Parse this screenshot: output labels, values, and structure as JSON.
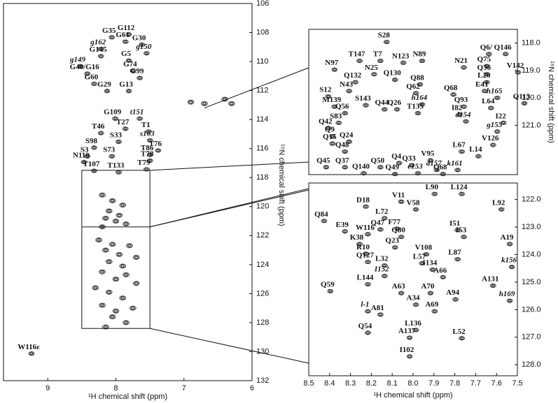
{
  "chart_data": [
    {
      "type": "contour",
      "xlim": [
        9.65,
        6
      ],
      "ylim": [
        106,
        132
      ],
      "xticks": [
        9,
        8,
        7,
        6
      ],
      "yticks": [
        106,
        108,
        110,
        112,
        114,
        116,
        118,
        120,
        122,
        124,
        126,
        128,
        130,
        132
      ],
      "x_label": "¹H chemical shift (ppm)",
      "y_label": "¹⁵N chemical shift (ppm)",
      "palette": {
        "red": "#e2282e",
        "blue": "#1f4b99",
        "green": "#6fae2a"
      },
      "labels": [
        {
          "label": "G112",
          "x": 7.85,
          "y": 107.7,
          "color": "red"
        },
        {
          "label": "G35",
          "x": 8.1,
          "y": 107.9,
          "color": "blue"
        },
        {
          "label": "G61",
          "x": 7.9,
          "y": 108.2,
          "color": "blue"
        },
        {
          "label": "G30",
          "x": 7.66,
          "y": 108.4,
          "color": "blue"
        },
        {
          "label": "g162",
          "x": 8.26,
          "y": 108.7,
          "color": "green"
        },
        {
          "label": "g150",
          "x": 7.59,
          "y": 109.0,
          "color": "green"
        },
        {
          "label": "G145",
          "x": 8.26,
          "y": 109.2,
          "color": "red"
        },
        {
          "label": "G5",
          "x": 7.85,
          "y": 109.5,
          "color": "blue"
        },
        {
          "label": "g149",
          "x": 8.56,
          "y": 109.9,
          "color": "green"
        },
        {
          "label": "G74",
          "x": 7.79,
          "y": 110.2,
          "color": "blue"
        },
        {
          "label": "G40/G16",
          "x": 8.46,
          "y": 110.4,
          "color": "blue"
        },
        {
          "label": "G99",
          "x": 7.69,
          "y": 110.7,
          "color": "red"
        },
        {
          "label": "G60",
          "x": 8.36,
          "y": 111.1,
          "color": "blue"
        },
        {
          "label": "G29",
          "x": 8.17,
          "y": 111.6,
          "color": "blue"
        },
        {
          "label": "G13",
          "x": 7.85,
          "y": 111.6,
          "color": "blue"
        },
        {
          "label": "G109",
          "x": 8.05,
          "y": 113.5,
          "color": "red"
        },
        {
          "label": "t151",
          "x": 7.69,
          "y": 113.5,
          "color": "green"
        },
        {
          "label": "T27",
          "x": 7.9,
          "y": 114.2,
          "color": "blue"
        },
        {
          "label": "T46",
          "x": 8.26,
          "y": 114.5,
          "color": "blue"
        },
        {
          "label": "T1",
          "x": 7.56,
          "y": 114.4,
          "color": "blue"
        },
        {
          "label": "s163",
          "x": 7.54,
          "y": 115.0,
          "color": "green"
        },
        {
          "label": "S33",
          "x": 8.0,
          "y": 115.1,
          "color": "blue"
        },
        {
          "label": "T76",
          "x": 7.42,
          "y": 115.7,
          "color": "blue"
        },
        {
          "label": "S98",
          "x": 8.36,
          "y": 115.5,
          "color": "red"
        },
        {
          "label": "T86",
          "x": 7.54,
          "y": 116.0,
          "color": "red"
        },
        {
          "label": "S3",
          "x": 8.46,
          "y": 116.1,
          "color": "blue"
        },
        {
          "label": "S73",
          "x": 8.1,
          "y": 116.1,
          "color": "blue"
        },
        {
          "label": "N110",
          "x": 8.51,
          "y": 116.5,
          "color": "red"
        },
        {
          "label": "T78",
          "x": 7.54,
          "y": 116.4,
          "color": "blue"
        },
        {
          "label": "T79",
          "x": 7.59,
          "y": 117.0,
          "color": "blue"
        },
        {
          "label": "T107",
          "x": 8.36,
          "y": 117.1,
          "color": "red"
        },
        {
          "label": "T133",
          "x": 8.0,
          "y": 117.2,
          "color": "red"
        },
        {
          "label": "W116ε",
          "x": 9.28,
          "y": 129.7,
          "color": "red"
        }
      ],
      "peaks": {
        "x": [
          8.2,
          8.05,
          7.9,
          8.1,
          7.95,
          8.15,
          8.0,
          7.85,
          8.2,
          8.25,
          8.05,
          7.8,
          8.15,
          7.95,
          7.7,
          8.1,
          7.9,
          8.2,
          7.85,
          8.0,
          7.7,
          8.3,
          8.1,
          7.9,
          8.2,
          8.0,
          7.75,
          8.05,
          7.85,
          8.15,
          6.9,
          6.4,
          6.3,
          6.7
        ],
        "y": [
          119.2,
          119.6,
          119.9,
          120.3,
          120.6,
          120.8,
          121.0,
          121.2,
          121.4,
          122.3,
          122.6,
          122.7,
          123.0,
          123.3,
          123.5,
          123.8,
          124.1,
          124.5,
          124.7,
          125.0,
          125.3,
          125.6,
          125.9,
          126.3,
          126.8,
          127.2,
          127.0,
          127.6,
          128.0,
          128.3,
          112.8,
          112.6,
          112.9,
          112.9
        ]
      }
    },
    {
      "type": "contour",
      "xlim": [
        8.5,
        7.5
      ],
      "ylim": [
        117.5,
        122.8
      ],
      "yticks": [
        {
          "value": 118,
          "label": "118.0"
        },
        {
          "value": 119,
          "label": "119.0"
        },
        {
          "value": 120,
          "label": "120.0"
        },
        {
          "value": 121,
          "label": "121.0"
        }
      ],
      "y_label": "¹⁵N chemical shift (ppm)",
      "palette": {
        "red": "#e2282e",
        "blue": "#1f4b99",
        "green": "#6fae2a"
      },
      "labels": [
        {
          "label": "S28",
          "x": 8.14,
          "y": 117.73,
          "color": "blue"
        },
        {
          "label": "T147",
          "x": 8.27,
          "y": 118.42,
          "color": "red"
        },
        {
          "label": "T7",
          "x": 8.17,
          "y": 118.42,
          "color": "blue"
        },
        {
          "label": "N123",
          "x": 8.06,
          "y": 118.49,
          "color": "red"
        },
        {
          "label": "N89",
          "x": 7.97,
          "y": 118.42,
          "color": "red"
        },
        {
          "label": "Q6/",
          "x": 7.65,
          "y": 118.17,
          "color": "blue"
        },
        {
          "label": "Q146",
          "x": 7.57,
          "y": 118.17,
          "color": "red"
        },
        {
          "label": "N97",
          "x": 8.39,
          "y": 118.74,
          "color": "red"
        },
        {
          "label": "Q75",
          "x": 7.66,
          "y": 118.61,
          "color": "blue"
        },
        {
          "label": "V142",
          "x": 7.51,
          "y": 118.84,
          "color": "red"
        },
        {
          "label": "N21",
          "x": 7.77,
          "y": 118.66,
          "color": "blue"
        },
        {
          "label": "N25",
          "x": 8.2,
          "y": 118.91,
          "color": "blue"
        },
        {
          "label": "Q36",
          "x": 7.66,
          "y": 118.91,
          "color": "blue"
        },
        {
          "label": "Q132",
          "x": 8.29,
          "y": 119.2,
          "color": "red"
        },
        {
          "label": "Q130",
          "x": 8.1,
          "y": 119.11,
          "color": "red"
        },
        {
          "label": "Q88",
          "x": 7.98,
          "y": 119.28,
          "color": "red"
        },
        {
          "label": "L20",
          "x": 7.66,
          "y": 119.2,
          "color": "blue"
        },
        {
          "label": "N43",
          "x": 8.32,
          "y": 119.52,
          "color": "blue"
        },
        {
          "label": "S12",
          "x": 8.42,
          "y": 119.72,
          "color": "blue"
        },
        {
          "label": "Q62",
          "x": 8.0,
          "y": 119.6,
          "color": "blue"
        },
        {
          "label": "Q68",
          "x": 7.82,
          "y": 119.65,
          "color": "blue"
        },
        {
          "label": "E41",
          "x": 7.67,
          "y": 119.52,
          "color": "blue"
        },
        {
          "label": "h165",
          "x": 7.61,
          "y": 119.77,
          "color": "green"
        },
        {
          "label": "Q113",
          "x": 7.48,
          "y": 119.97,
          "color": "red"
        },
        {
          "label": "M139",
          "x": 8.39,
          "y": 120.09,
          "color": "red"
        },
        {
          "label": "S143",
          "x": 8.24,
          "y": 120.04,
          "color": "red"
        },
        {
          "label": "Q26",
          "x": 8.09,
          "y": 120.19,
          "color": "blue"
        },
        {
          "label": "h164",
          "x": 7.97,
          "y": 120.01,
          "color": "green"
        },
        {
          "label": "Q93",
          "x": 7.77,
          "y": 120.09,
          "color": "red"
        },
        {
          "label": "L64",
          "x": 7.64,
          "y": 120.14,
          "color": "blue"
        },
        {
          "label": "Q56",
          "x": 8.34,
          "y": 120.33,
          "color": "blue"
        },
        {
          "label": "Q44",
          "x": 8.15,
          "y": 120.19,
          "color": "blue"
        },
        {
          "label": "T135",
          "x": 7.99,
          "y": 120.33,
          "color": "red"
        },
        {
          "label": "I82",
          "x": 7.79,
          "y": 120.38,
          "color": "red"
        },
        {
          "label": "S83",
          "x": 8.37,
          "y": 120.68,
          "color": "blue"
        },
        {
          "label": "d154",
          "x": 7.76,
          "y": 120.63,
          "color": "green"
        },
        {
          "label": "I22",
          "x": 7.58,
          "y": 120.68,
          "color": "blue"
        },
        {
          "label": "Q42",
          "x": 8.42,
          "y": 120.87,
          "color": "blue"
        },
        {
          "label": "g155",
          "x": 7.61,
          "y": 121.0,
          "color": "green"
        },
        {
          "label": "Q9",
          "x": 8.4,
          "y": 121.17,
          "color": "blue"
        },
        {
          "label": "Q24",
          "x": 8.32,
          "y": 121.37,
          "color": "blue"
        },
        {
          "label": "Q15",
          "x": 8.4,
          "y": 121.44,
          "color": "blue"
        },
        {
          "label": "Q48",
          "x": 8.34,
          "y": 121.73,
          "color": "blue"
        },
        {
          "label": "L67",
          "x": 7.78,
          "y": 121.73,
          "color": "blue"
        },
        {
          "label": "L14",
          "x": 7.7,
          "y": 121.9,
          "color": "blue"
        },
        {
          "label": "V126",
          "x": 7.63,
          "y": 121.49,
          "color": "red"
        },
        {
          "label": "Q45",
          "x": 8.43,
          "y": 122.3,
          "color": "blue"
        },
        {
          "label": "Q37",
          "x": 8.34,
          "y": 122.3,
          "color": "blue"
        },
        {
          "label": "Q50",
          "x": 8.17,
          "y": 122.3,
          "color": "blue"
        },
        {
          "label": "Q4",
          "x": 8.08,
          "y": 122.15,
          "color": "blue"
        },
        {
          "label": "Q33",
          "x": 8.02,
          "y": 122.23,
          "color": "blue"
        },
        {
          "label": "V95",
          "x": 7.93,
          "y": 122.05,
          "color": "red"
        },
        {
          "label": "Q49",
          "x": 8.1,
          "y": 122.55,
          "color": "blue"
        },
        {
          "label": "d157",
          "x": 7.9,
          "y": 122.4,
          "color": "green"
        },
        {
          "label": "k161",
          "x": 7.8,
          "y": 122.4,
          "color": "green"
        },
        {
          "label": "Q140",
          "x": 8.25,
          "y": 122.52,
          "color": "red"
        },
        {
          "label": "e153",
          "x": 7.99,
          "y": 122.52,
          "color": "green"
        },
        {
          "label": "Q68",
          "x": 7.87,
          "y": 122.55,
          "color": "blue"
        }
      ]
    },
    {
      "type": "contour",
      "xlim": [
        8.5,
        7.5
      ],
      "ylim": [
        121.4,
        128.4
      ],
      "xticks": [
        8.5,
        8.4,
        8.3,
        8.2,
        8.1,
        {
          "value": 8,
          "label": "8.0"
        },
        7.9,
        7.8,
        7.7,
        7.6,
        7.5
      ],
      "yticks": [
        {
          "value": 122,
          "label": "122.0"
        },
        {
          "value": 123,
          "label": "123.0"
        },
        {
          "value": 124,
          "label": "124.0"
        },
        {
          "value": 125,
          "label": "125.0"
        },
        {
          "value": 126,
          "label": "126.0"
        },
        {
          "value": 127,
          "label": "127.0"
        },
        {
          "value": 128,
          "label": "128.0"
        }
      ],
      "x_label": "¹H chemical shift (ppm)",
      "palette": {
        "red": "#e2282e",
        "blue": "#1f4b99",
        "green": "#6fae2a"
      },
      "labels": [
        {
          "label": "D18",
          "x": 8.24,
          "y": 122.03,
          "color": "blue"
        },
        {
          "label": "V11",
          "x": 8.07,
          "y": 121.85,
          "color": "blue"
        },
        {
          "label": "L90",
          "x": 7.91,
          "y": 121.57,
          "color": "red"
        },
        {
          "label": "L124",
          "x": 7.78,
          "y": 121.57,
          "color": "red"
        },
        {
          "label": "V58",
          "x": 8.0,
          "y": 122.13,
          "color": "blue"
        },
        {
          "label": "L92",
          "x": 7.59,
          "y": 122.13,
          "color": "red"
        },
        {
          "label": "L72",
          "x": 8.15,
          "y": 122.45,
          "color": "blue"
        },
        {
          "label": "Q84",
          "x": 8.44,
          "y": 122.55,
          "color": "red"
        },
        {
          "label": "E39",
          "x": 8.34,
          "y": 122.93,
          "color": "blue"
        },
        {
          "label": "F77",
          "x": 8.09,
          "y": 122.83,
          "color": "blue"
        },
        {
          "label": "Q47",
          "x": 8.17,
          "y": 122.86,
          "color": "blue"
        },
        {
          "label": "W116",
          "x": 8.23,
          "y": 123.03,
          "color": "red"
        },
        {
          "label": "I51",
          "x": 7.8,
          "y": 122.88,
          "color": "blue"
        },
        {
          "label": "Q80",
          "x": 8.07,
          "y": 123.13,
          "color": "blue"
        },
        {
          "label": "I53",
          "x": 7.77,
          "y": 123.13,
          "color": "blue"
        },
        {
          "label": "A19",
          "x": 7.55,
          "y": 123.39,
          "color": "blue"
        },
        {
          "label": "K38",
          "x": 8.27,
          "y": 123.39,
          "color": "blue"
        },
        {
          "label": "Q23",
          "x": 8.1,
          "y": 123.51,
          "color": "blue"
        },
        {
          "label": "R10",
          "x": 8.24,
          "y": 123.74,
          "color": "blue"
        },
        {
          "label": "V108",
          "x": 7.95,
          "y": 123.76,
          "color": "red"
        },
        {
          "label": "L87",
          "x": 7.8,
          "y": 123.94,
          "color": "red"
        },
        {
          "label": "Q127",
          "x": 8.23,
          "y": 124.04,
          "color": "red"
        },
        {
          "label": "L57",
          "x": 7.97,
          "y": 124.09,
          "color": "blue"
        },
        {
          "label": "L32",
          "x": 8.15,
          "y": 124.17,
          "color": "blue"
        },
        {
          "label": "I134",
          "x": 7.92,
          "y": 124.32,
          "color": "red"
        },
        {
          "label": "k156",
          "x": 7.54,
          "y": 124.22,
          "color": "green"
        },
        {
          "label": "I152",
          "x": 8.15,
          "y": 124.55,
          "color": "green"
        },
        {
          "label": "A66",
          "x": 7.87,
          "y": 124.59,
          "color": "blue"
        },
        {
          "label": "L144",
          "x": 8.23,
          "y": 124.85,
          "color": "red"
        },
        {
          "label": "A131",
          "x": 7.63,
          "y": 124.9,
          "color": "red"
        },
        {
          "label": "A63",
          "x": 8.07,
          "y": 125.17,
          "color": "blue"
        },
        {
          "label": "A70",
          "x": 7.93,
          "y": 125.17,
          "color": "blue"
        },
        {
          "label": "Q59",
          "x": 8.41,
          "y": 125.1,
          "color": "blue"
        },
        {
          "label": "A94",
          "x": 7.81,
          "y": 125.4,
          "color": "red"
        },
        {
          "label": "h169",
          "x": 7.55,
          "y": 125.45,
          "color": "green"
        },
        {
          "label": "A34",
          "x": 8.0,
          "y": 125.59,
          "color": "blue"
        },
        {
          "label": "A69",
          "x": 7.91,
          "y": 125.83,
          "color": "blue"
        },
        {
          "label": "l-1",
          "x": 8.23,
          "y": 125.83,
          "color": "green"
        },
        {
          "label": "A81",
          "x": 8.17,
          "y": 125.95,
          "color": "blue"
        },
        {
          "label": "Q54",
          "x": 8.23,
          "y": 126.61,
          "color": "blue"
        },
        {
          "label": "L136",
          "x": 8.0,
          "y": 126.51,
          "color": "red"
        },
        {
          "label": "A137",
          "x": 8.03,
          "y": 126.79,
          "color": "red"
        },
        {
          "label": "L52",
          "x": 7.78,
          "y": 126.81,
          "color": "blue"
        },
        {
          "label": "I102",
          "x": 8.03,
          "y": 127.47,
          "color": "red"
        }
      ]
    }
  ]
}
